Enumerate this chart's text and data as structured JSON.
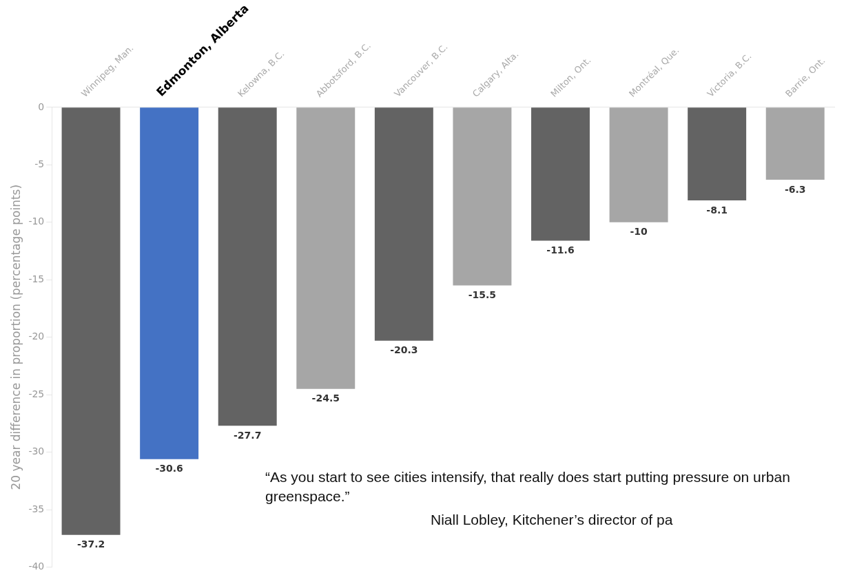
{
  "chart_data": {
    "type": "bar",
    "ylabel": "20 year difference in proportion (percentage points)",
    "categories": [
      "Winnipeg, Man.",
      "Edmonton, Alberta",
      "Kelowna, B.C.",
      "Abbotsford, B.C.",
      "Vancouver, B.C.",
      "Calgary, Alta.",
      "Milton, Ont.",
      "Montréal, Que.",
      "Victoria, B.C.",
      "Barrie, Ont."
    ],
    "values": [
      -37.2,
      -30.6,
      -27.7,
      -24.5,
      -20.3,
      -15.5,
      -11.6,
      -10,
      -8.1,
      -6.3
    ],
    "colors": [
      "#636363",
      "#4472c4",
      "#636363",
      "#a6a6a6",
      "#636363",
      "#a6a6a6",
      "#636363",
      "#a6a6a6",
      "#636363",
      "#a6a6a6"
    ],
    "ylim": [
      -40,
      0
    ],
    "yticks": [
      0,
      -5,
      -10,
      -15,
      -20,
      -25,
      -30,
      -35,
      -40
    ],
    "grid": false,
    "legend": false,
    "data_labels": true,
    "annotations": [
      "“As you start to see cities intensify, that really does start putting pressure on urban greenspace.”",
      "Niall Lobley, Kitchener’s director of pa"
    ]
  }
}
